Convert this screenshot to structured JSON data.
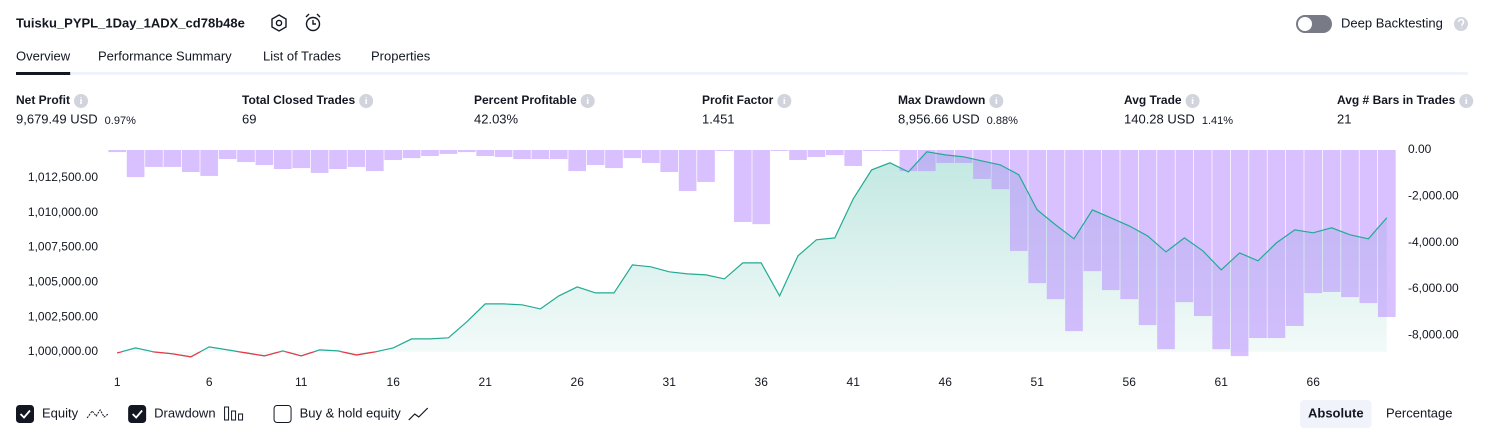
{
  "header": {
    "title": "Tuisku_PYPL_1Day_1ADX_cd78b48e",
    "toggle": {
      "label": "Deep Backtesting",
      "on": false
    }
  },
  "tabs": {
    "items": [
      "Overview",
      "Performance Summary",
      "List of Trades",
      "Properties"
    ],
    "active": 0
  },
  "metrics": [
    {
      "label": "Net Profit",
      "value": "9,679.49 USD",
      "percent": "0.97%",
      "color": "#089981"
    },
    {
      "label": "Total Closed Trades",
      "value": "69"
    },
    {
      "label": "Percent Profitable",
      "value": "42.03%",
      "color": "#089981"
    },
    {
      "label": "Profit Factor",
      "value": "1.451",
      "color": "#089981"
    },
    {
      "label": "Max Drawdown",
      "value": "8,956.66 USD",
      "percent": "0.88%",
      "color": "#f23645"
    },
    {
      "label": "Avg Trade",
      "value": "140.28 USD",
      "percent": "1.41%",
      "color": "#089981"
    },
    {
      "label": "Avg # Bars in Trades",
      "value": "21"
    }
  ],
  "chart_data": {
    "type": "line",
    "x": [
      1,
      2,
      3,
      4,
      5,
      6,
      7,
      8,
      9,
      10,
      11,
      12,
      13,
      14,
      15,
      16,
      17,
      18,
      19,
      20,
      21,
      22,
      23,
      24,
      25,
      26,
      27,
      28,
      29,
      30,
      31,
      32,
      33,
      34,
      35,
      36,
      37,
      38,
      39,
      40,
      41,
      42,
      43,
      44,
      45,
      46,
      47,
      48,
      49,
      50,
      51,
      52,
      53,
      54,
      55,
      56,
      57,
      58,
      59,
      60,
      61,
      62,
      63,
      64,
      65,
      66,
      67,
      68,
      69,
      70
    ],
    "xlim": [
      0.5,
      70.5
    ],
    "xticks": [
      1,
      6,
      11,
      16,
      21,
      26,
      31,
      36,
      41,
      46,
      51,
      56,
      61,
      66
    ],
    "ylim": [
      998700,
      1014500
    ],
    "yticks": [
      {
        "value": 1000000,
        "label": "1,000,000.00"
      },
      {
        "value": 1002500,
        "label": "1,002,500.00"
      },
      {
        "value": 1005000,
        "label": "1,005,000.00"
      },
      {
        "value": 1007500,
        "label": "1,007,500.00"
      },
      {
        "value": 1010000,
        "label": "1,010,000.00"
      },
      {
        "value": 1012500,
        "label": "1,012,500.00"
      }
    ],
    "y2lim": [
      -9500,
      0
    ],
    "y2ticks": [
      {
        "value": 0,
        "label": "0.00"
      },
      {
        "value": -2000,
        "label": "-2,000.00"
      },
      {
        "value": -4000,
        "label": "-4,000.00"
      },
      {
        "value": -6000,
        "label": "-6,000.00"
      },
      {
        "value": -8000,
        "label": "-8,000.00"
      }
    ],
    "series": [
      {
        "name": "Equity",
        "type": "line",
        "color": "#22ab94",
        "loss_color": "#f23645",
        "checked": true,
        "values": [
          999930,
          1000290,
          1000000,
          999860,
          999640,
          1000360,
          1000140,
          999930,
          999710,
          1000070,
          999710,
          1000140,
          1000070,
          999780,
          1000000,
          1000290,
          1000930,
          1000930,
          1001010,
          1002160,
          1003450,
          1003450,
          1003380,
          1003090,
          1004020,
          1004670,
          1004240,
          1004240,
          1006250,
          1006110,
          1005750,
          1005600,
          1005530,
          1005240,
          1006390,
          1006390,
          1004020,
          1006900,
          1008050,
          1008190,
          1010990,
          1013070,
          1013580,
          1012930,
          1014370,
          1014150,
          1014010,
          1013720,
          1013430,
          1012720,
          1010200,
          1009120,
          1008120,
          1010200,
          1009630,
          1009050,
          1008330,
          1007180,
          1008190,
          1007260,
          1005890,
          1007110,
          1006540,
          1007830,
          1008760,
          1008550,
          1008910,
          1008410,
          1008120,
          1009630
        ]
      },
      {
        "name": "Drawdown",
        "type": "bar",
        "axis": "y2",
        "color": "#b98cff",
        "checked": true,
        "values": [
          -90,
          -1170,
          -730,
          -730,
          -950,
          -1120,
          -390,
          -520,
          -650,
          -820,
          -780,
          -990,
          -820,
          -730,
          -910,
          -430,
          -350,
          -260,
          -170,
          -90,
          -260,
          -300,
          -390,
          -390,
          -390,
          -910,
          -650,
          -780,
          -350,
          -560,
          -950,
          -1770,
          -1380,
          -40,
          -3110,
          -3200,
          -40,
          -430,
          -300,
          -220,
          -690,
          -40,
          -40,
          -910,
          -910,
          -560,
          -560,
          -1250,
          -1690,
          -4360,
          -5750,
          -6440,
          -7820,
          -5230,
          -6050,
          -6440,
          -7560,
          -8600,
          -6570,
          -7170,
          -8600,
          -8900,
          -8120,
          -8120,
          -7600,
          -6180,
          -6130,
          -6350,
          -6610,
          -7210
        ]
      }
    ],
    "extra_toggles": [
      {
        "label": "Buy & hold equity",
        "checked": false
      }
    ]
  },
  "view_buttons": {
    "items": [
      "Absolute",
      "Percentage"
    ],
    "active": 0
  }
}
